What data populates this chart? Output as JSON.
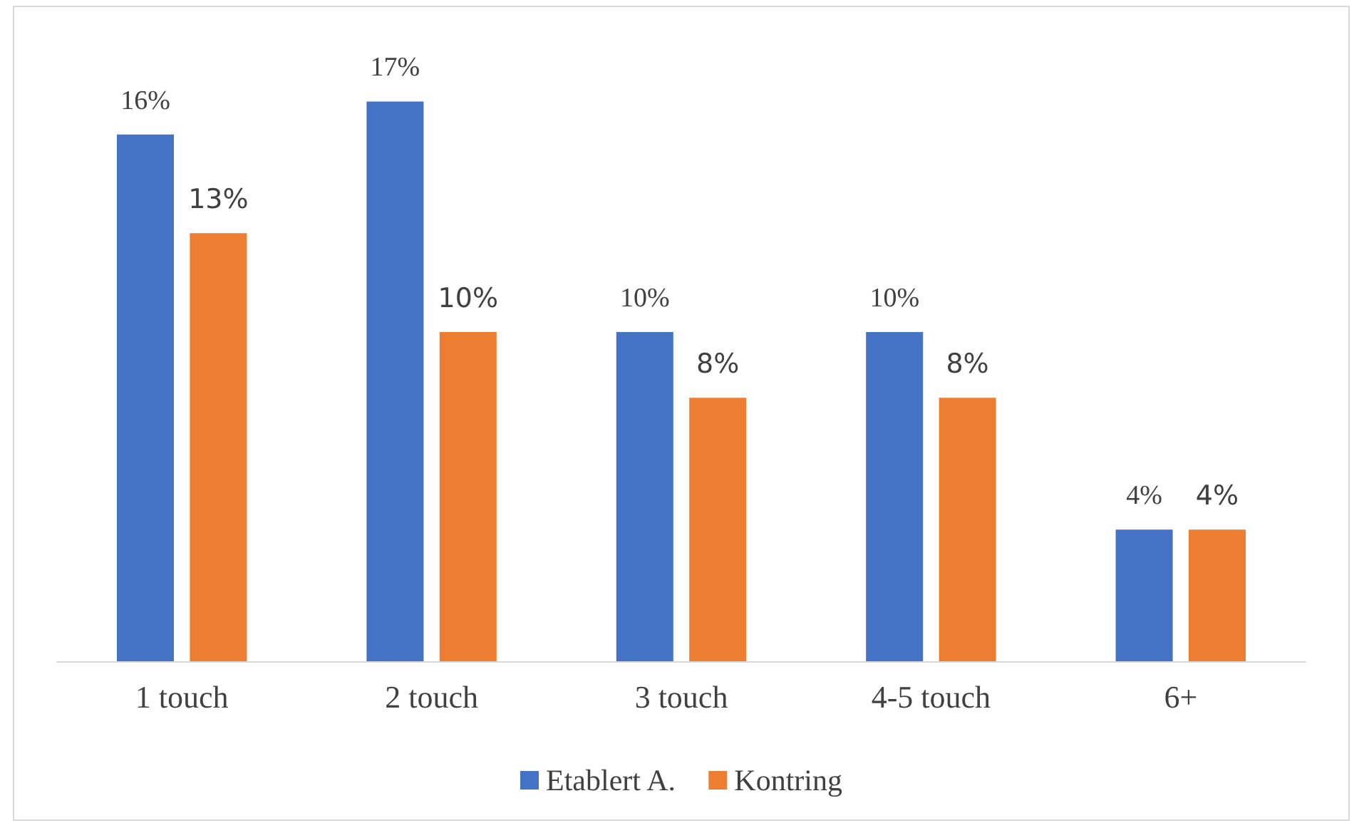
{
  "chart_data": {
    "type": "bar",
    "categories": [
      "1 touch",
      "2 touch",
      "3 touch",
      "4-5 touch",
      "6+"
    ],
    "series": [
      {
        "name": "Etablert A.",
        "color": "#4472c4",
        "values": [
          16,
          17,
          10,
          10,
          4
        ],
        "value_labels": [
          "16%",
          "17%",
          "10%",
          "10%",
          "4%"
        ]
      },
      {
        "name": "Kontring",
        "color": "#ed7d31",
        "values": [
          13,
          10,
          8,
          8,
          4
        ],
        "value_labels": [
          "13%",
          "10%",
          "8%",
          "8%",
          "4%"
        ]
      }
    ],
    "legend": "bottom"
  }
}
